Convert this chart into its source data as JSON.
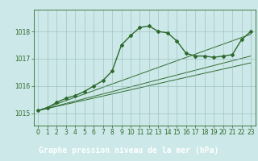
{
  "title": "Graphe pression niveau de la mer (hPa)",
  "x_labels": [
    0,
    1,
    2,
    3,
    4,
    5,
    6,
    7,
    8,
    9,
    10,
    11,
    12,
    13,
    14,
    15,
    16,
    17,
    18,
    19,
    20,
    21,
    22,
    23
  ],
  "series_main": {
    "x": [
      0,
      1,
      2,
      3,
      4,
      5,
      6,
      7,
      8,
      9,
      10,
      11,
      12,
      13,
      14,
      15,
      16,
      17,
      18,
      19,
      20,
      21,
      22,
      23
    ],
    "y": [
      1015.1,
      1015.2,
      1015.4,
      1015.55,
      1015.65,
      1015.8,
      1016.0,
      1016.2,
      1016.55,
      1017.5,
      1017.85,
      1018.15,
      1018.2,
      1018.0,
      1017.95,
      1017.65,
      1017.2,
      1017.1,
      1017.1,
      1017.05,
      1017.1,
      1017.15,
      1017.7,
      1018.0
    ],
    "color": "#2d6a2d",
    "linewidth": 1.0,
    "marker": "D",
    "markersize": 2.0
  },
  "series_lines": [
    {
      "x": [
        0,
        23
      ],
      "y": [
        1015.1,
        1016.85
      ],
      "color": "#2d6a2d",
      "linewidth": 0.7
    },
    {
      "x": [
        0,
        23
      ],
      "y": [
        1015.1,
        1017.1
      ],
      "color": "#2d6a2d",
      "linewidth": 0.7
    },
    {
      "x": [
        0,
        23
      ],
      "y": [
        1015.1,
        1017.9
      ],
      "color": "#2d6a2d",
      "linewidth": 0.7
    }
  ],
  "ylim": [
    1014.55,
    1018.8
  ],
  "yticks": [
    1015,
    1016,
    1017,
    1018
  ],
  "xlim": [
    -0.5,
    23.5
  ],
  "bg_color": "#cce8e8",
  "plot_bg_color": "#cce8e8",
  "grid_color": "#99bbbb",
  "axis_color": "#2d6a2d",
  "label_color": "#2d6a2d",
  "title_color": "#ffffff",
  "title_bg_color": "#2d6a2d",
  "title_fontsize": 7.0,
  "tick_fontsize": 5.5
}
